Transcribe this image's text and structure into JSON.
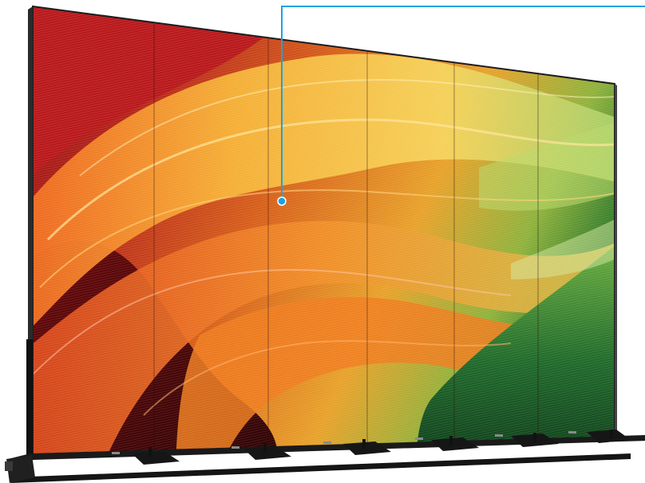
{
  "scene": {
    "subject": "led-video-wall-on-floor-stand",
    "panel_count": 6,
    "background": "#ffffff",
    "colors": {
      "frame": "#1d1d1f",
      "stand": "#111111",
      "callout": "#1aa3e0",
      "red": "#b3161a",
      "deep_red": "#5a0708",
      "orange": "#f08a1c",
      "yellow": "#f6c544",
      "green": "#2f7a2a",
      "dark_green": "#0c3a18"
    }
  }
}
